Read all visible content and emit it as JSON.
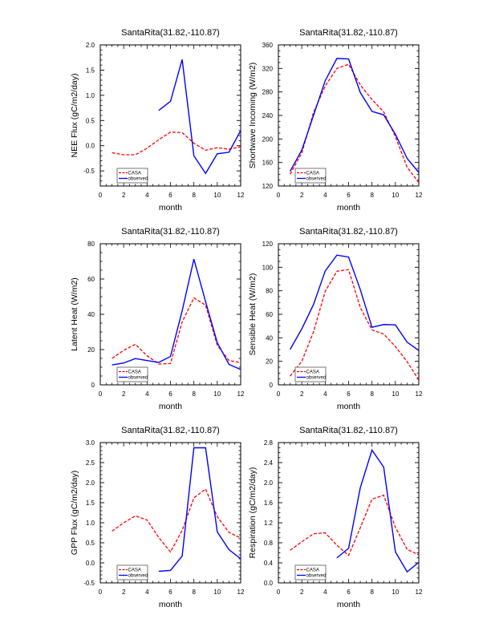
{
  "colors": {
    "casa": "#ff0000",
    "observed": "#0000ff",
    "axis": "#000000"
  },
  "chart_data": [
    {
      "type": "line",
      "title": "SantaRita(31.82,-110.87)",
      "xlabel": "month",
      "ylabel": "NEE Flux (gC/m2/day)",
      "xlim": [
        0,
        12
      ],
      "ylim": [
        -0.8,
        2.0
      ],
      "xticks": [
        0,
        2,
        4,
        6,
        8,
        10,
        12
      ],
      "xtick_labels": [
        "0",
        "2",
        "4",
        "6",
        "8",
        "10",
        "12"
      ],
      "yticks": [
        -0.5,
        0.0,
        0.5,
        1.0,
        1.5,
        2.0
      ],
      "ytick_labels": [
        "-0.5",
        "0.0",
        "0.5",
        "1.0",
        "1.5",
        "2.0"
      ],
      "yminor": 0.1,
      "xminor": 0.5,
      "legend": [
        "CASA",
        "observed"
      ],
      "legend_position": "bottom-left",
      "series": [
        {
          "name": "CASA",
          "style": "dashed",
          "x": [
            1,
            2,
            3,
            4,
            5,
            6,
            7,
            8,
            9,
            10,
            11,
            12
          ],
          "values": [
            -0.14,
            -0.18,
            -0.18,
            -0.05,
            0.12,
            0.27,
            0.26,
            0.05,
            -0.09,
            -0.04,
            -0.07,
            -0.02
          ]
        },
        {
          "name": "observed",
          "style": "solid",
          "x": [
            5,
            6,
            7,
            8,
            9,
            10,
            11,
            12
          ],
          "values": [
            0.7,
            0.88,
            1.71,
            -0.2,
            -0.55,
            -0.16,
            -0.13,
            0.3
          ]
        }
      ]
    },
    {
      "type": "line",
      "title": "SantaRita(31.82,-110.87)",
      "xlabel": "month",
      "ylabel": "Shortwave Incoming (W/m2)",
      "xlim": [
        0,
        12
      ],
      "ylim": [
        120,
        360
      ],
      "xticks": [
        0,
        2,
        4,
        6,
        8,
        10,
        12
      ],
      "xtick_labels": [
        "0",
        "2",
        "4",
        "6",
        "8",
        "10",
        "12"
      ],
      "yticks": [
        120,
        160,
        200,
        240,
        280,
        320,
        360
      ],
      "ytick_labels": [
        "120",
        "160",
        "200",
        "240",
        "280",
        "320",
        "360"
      ],
      "yminor": 10,
      "xminor": 0.5,
      "legend": [
        "CASA",
        "observed"
      ],
      "legend_position": "bottom-left",
      "series": [
        {
          "name": "CASA",
          "style": "dashed",
          "x": [
            1,
            2,
            3,
            4,
            5,
            6,
            7,
            8,
            9,
            10,
            11,
            12
          ],
          "values": [
            140,
            176,
            245,
            290,
            320,
            327,
            292,
            267,
            246,
            204,
            152,
            126
          ]
        },
        {
          "name": "observed",
          "style": "solid",
          "x": [
            1,
            2,
            3,
            4,
            5,
            6,
            7,
            8,
            9,
            10,
            11,
            12
          ],
          "values": [
            145,
            181,
            240,
            299,
            337,
            336,
            279,
            247,
            241,
            208,
            167,
            143
          ]
        }
      ]
    },
    {
      "type": "line",
      "title": "SantaRita(31.82,-110.87)",
      "xlabel": "month",
      "ylabel": "Latent Heat (W/m2)",
      "xlim": [
        0,
        12
      ],
      "ylim": [
        0,
        80
      ],
      "xticks": [
        0,
        2,
        4,
        6,
        8,
        10,
        12
      ],
      "xtick_labels": [
        "0",
        "2",
        "4",
        "6",
        "8",
        "10",
        "12"
      ],
      "yticks": [
        0,
        20,
        40,
        60,
        80
      ],
      "ytick_labels": [
        "0",
        "20",
        "40",
        "60",
        "80"
      ],
      "yminor": 5,
      "xminor": 0.5,
      "legend": [
        "CASA",
        "observed"
      ],
      "legend_position": "bottom-left",
      "series": [
        {
          "name": "CASA",
          "style": "dashed",
          "x": [
            1,
            2,
            3,
            4,
            5,
            6,
            7,
            8,
            9,
            10,
            11,
            12
          ],
          "values": [
            15.0,
            19.6,
            23.0,
            16.5,
            11.8,
            12.1,
            35.7,
            49.3,
            45.2,
            22.4,
            13.8,
            12.6
          ]
        },
        {
          "name": "observed",
          "style": "solid",
          "x": [
            1,
            2,
            3,
            4,
            5,
            6,
            7,
            8,
            9,
            10,
            11,
            12
          ],
          "values": [
            11.3,
            12.4,
            14.9,
            13.8,
            12.7,
            16.1,
            42.0,
            71.3,
            47.2,
            23.9,
            11.6,
            8.7
          ]
        }
      ]
    },
    {
      "type": "line",
      "title": "SantaRita(31.82,-110.87)",
      "xlabel": "month",
      "ylabel": "Sensible Heat (W/m2)",
      "xlim": [
        0,
        12
      ],
      "ylim": [
        0,
        120
      ],
      "xticks": [
        0,
        2,
        4,
        6,
        8,
        10,
        12
      ],
      "xtick_labels": [
        "0",
        "2",
        "4",
        "6",
        "8",
        "10",
        "12"
      ],
      "yticks": [
        0,
        20,
        40,
        60,
        80,
        100,
        120
      ],
      "ytick_labels": [
        "0",
        "20",
        "40",
        "60",
        "80",
        "100",
        "120"
      ],
      "yminor": 5,
      "xminor": 0.5,
      "legend": [
        "CASA",
        "observed"
      ],
      "legend_position": "bottom-left",
      "series": [
        {
          "name": "CASA",
          "style": "dashed",
          "x": [
            1,
            2,
            3,
            4,
            5,
            6,
            7,
            8,
            9,
            10,
            11,
            12
          ],
          "values": [
            7.4,
            20.0,
            45.0,
            79.5,
            96.6,
            98.0,
            65.7,
            46.7,
            43.2,
            32.6,
            19.8,
            4.1
          ]
        },
        {
          "name": "observed",
          "style": "solid",
          "x": [
            1,
            2,
            3,
            4,
            5,
            6,
            7,
            8,
            9,
            10,
            11,
            12
          ],
          "values": [
            30.1,
            47.6,
            68.3,
            96.8,
            110.3,
            108.7,
            81.0,
            49.0,
            51.3,
            51.0,
            36.3,
            29.2
          ]
        }
      ]
    },
    {
      "type": "line",
      "title": "SantaRita(31.82,-110.87)",
      "xlabel": "month",
      "ylabel": "GPP Flux (gC/m2/day)",
      "xlim": [
        0,
        12
      ],
      "ylim": [
        -0.5,
        3.0
      ],
      "xticks": [
        0,
        2,
        4,
        6,
        8,
        10,
        12
      ],
      "xtick_labels": [
        "0",
        "2",
        "4",
        "6",
        "8",
        "10",
        "12"
      ],
      "yticks": [
        -0.5,
        0.0,
        0.5,
        1.0,
        1.5,
        2.0,
        2.5,
        3.0
      ],
      "ytick_labels": [
        "-0.5",
        "0.0",
        "0.5",
        "1.0",
        "1.5",
        "2.0",
        "2.5",
        "3.0"
      ],
      "yminor": 0.1,
      "xminor": 0.5,
      "legend": [
        "CASA",
        "observed"
      ],
      "legend_position": "bottom-left",
      "series": [
        {
          "name": "CASA",
          "style": "dashed",
          "x": [
            1,
            2,
            3,
            4,
            5,
            6,
            7,
            8,
            9,
            10,
            11,
            12
          ],
          "values": [
            0.79,
            1.0,
            1.17,
            1.07,
            0.63,
            0.27,
            0.81,
            1.62,
            1.84,
            1.15,
            0.76,
            0.62
          ]
        },
        {
          "name": "observed",
          "style": "solid",
          "x": [
            5,
            6,
            7,
            8,
            9,
            10,
            11,
            12
          ],
          "values": [
            -0.21,
            -0.19,
            0.17,
            2.87,
            2.87,
            0.77,
            0.33,
            0.1
          ]
        }
      ]
    },
    {
      "type": "line",
      "title": "SantaRita(31.82,-110.87)",
      "xlabel": "month",
      "ylabel": "Respiration (gC/m2/day)",
      "xlim": [
        0,
        12
      ],
      "ylim": [
        0.0,
        2.8
      ],
      "xticks": [
        0,
        2,
        4,
        6,
        8,
        10,
        12
      ],
      "xtick_labels": [
        "0",
        "2",
        "4",
        "6",
        "8",
        "10",
        "12"
      ],
      "yticks": [
        0.0,
        0.4,
        0.8,
        1.2,
        1.6,
        2.0,
        2.4,
        2.8
      ],
      "ytick_labels": [
        "0.0",
        "0.4",
        "0.8",
        "1.2",
        "1.6",
        "2.0",
        "2.4",
        "2.8"
      ],
      "yminor": 0.1,
      "xminor": 0.5,
      "legend": [
        "CASA",
        "observed"
      ],
      "legend_position": "bottom-left",
      "series": [
        {
          "name": "CASA",
          "style": "dashed",
          "x": [
            1,
            2,
            3,
            4,
            5,
            6,
            7,
            8,
            9,
            10,
            11,
            12
          ],
          "values": [
            0.65,
            0.82,
            0.98,
            1.0,
            0.75,
            0.55,
            1.1,
            1.67,
            1.75,
            1.11,
            0.67,
            0.56
          ]
        },
        {
          "name": "observed",
          "style": "solid",
          "x": [
            5,
            6,
            7,
            8,
            9,
            10,
            11,
            12
          ],
          "values": [
            0.5,
            0.69,
            1.9,
            2.65,
            2.31,
            0.62,
            0.22,
            0.41
          ]
        }
      ]
    }
  ]
}
